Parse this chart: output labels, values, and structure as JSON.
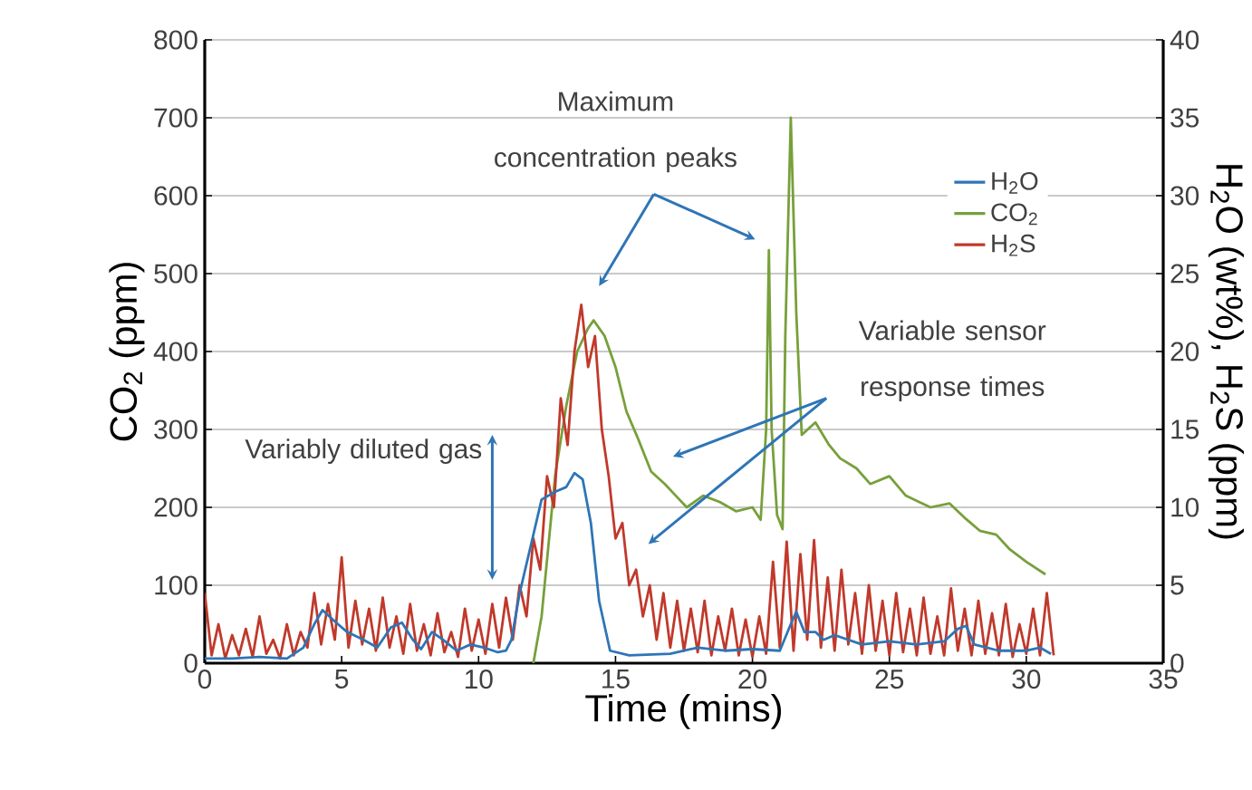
{
  "chart_data": {
    "type": "line",
    "xlabel": "Time (mins)",
    "ylabel": "CO$_{2}$ (ppm)",
    "y2label": "H$_{2}$O (wt%), H$_{2}$S (ppm)",
    "xlim": [
      0,
      35
    ],
    "xticks": [
      0,
      5,
      10,
      15,
      20,
      25,
      30,
      35
    ],
    "ylim": [
      0,
      800
    ],
    "yticks": [
      0,
      100,
      200,
      300,
      400,
      500,
      600,
      700,
      800
    ],
    "y2lim": [
      0,
      40
    ],
    "y2ticks": [
      0,
      5,
      10,
      15,
      20,
      25,
      30,
      35,
      40
    ],
    "grid": "y",
    "legend": "top right",
    "marker": "none",
    "line_style": "solid",
    "annotations": [
      "Maximum concentration peaks",
      "Variably diluted gas",
      "Variable sensor response times"
    ],
    "series": [
      {
        "name": "H$_{2}$O",
        "color": "#2e75b6",
        "axis": "y2",
        "x": [
          0,
          1,
          2,
          3,
          3.6,
          4.0,
          4.3,
          4.8,
          5.2,
          5.8,
          6.3,
          6.8,
          7.2,
          7.6,
          7.9,
          8.3,
          8.7,
          9.2,
          9.7,
          10.2,
          10.7,
          11.0,
          11.2,
          11.5,
          11.9,
          12.3,
          12.8,
          13.2,
          13.5,
          13.8,
          14.1,
          14.4,
          14.8,
          15.5,
          17,
          18,
          19,
          20,
          21,
          21.4,
          21.6,
          21.9,
          22.3,
          22.6,
          23,
          24,
          25,
          26,
          27,
          27.5,
          27.8,
          28.1,
          29,
          30,
          30.5,
          30.9
        ],
        "values": [
          0.3,
          0.3,
          0.4,
          0.3,
          1.0,
          2.5,
          3.4,
          2.6,
          2.0,
          1.5,
          1.0,
          2.3,
          2.6,
          1.5,
          0.9,
          2.0,
          1.5,
          0.8,
          1.2,
          1.0,
          0.7,
          0.8,
          1.5,
          4.5,
          7.5,
          10.5,
          11.0,
          11.3,
          12.2,
          11.8,
          9.0,
          4.0,
          0.8,
          0.5,
          0.6,
          1.0,
          0.8,
          0.9,
          0.8,
          2.5,
          3.3,
          2.0,
          2.0,
          1.5,
          1.8,
          1.2,
          1.4,
          1.2,
          1.4,
          2.2,
          2.4,
          1.2,
          0.8,
          0.8,
          1.0,
          0.6
        ]
      },
      {
        "name": "CO$_{2}$",
        "color": "#77a03a",
        "x": [
          12.0,
          12.3,
          12.8,
          13.2,
          13.6,
          14.0,
          14.2,
          14.6,
          15.0,
          15.4,
          15.8,
          16.3,
          16.8,
          17.2,
          17.6,
          18.2,
          18.8,
          19.4,
          20.0,
          20.3,
          20.5,
          20.6,
          20.7,
          20.9,
          21.1,
          21.2,
          21.4,
          21.6,
          21.8,
          22.3,
          22.8,
          23.2,
          23.8,
          24.3,
          25.0,
          25.6,
          26.5,
          27.2,
          27.8,
          28.3,
          28.9,
          29.4,
          30.0,
          30.7
        ],
        "values": [
          0,
          60,
          242,
          330,
          400,
          430,
          440,
          420,
          380,
          323,
          290,
          246,
          230,
          215,
          200,
          215,
          207,
          195,
          200,
          184,
          300,
          530,
          300,
          190,
          172,
          420,
          700,
          450,
          293,
          309,
          280,
          263,
          250,
          230,
          240,
          215,
          200,
          205,
          185,
          170,
          165,
          146,
          130,
          114
        ]
      },
      {
        "name": "H$_{2}$S",
        "color": "#c0392b",
        "axis": "y2",
        "x": [
          0,
          0.25,
          0.5,
          0.75,
          1,
          1.25,
          1.5,
          1.75,
          2,
          2.25,
          2.5,
          2.75,
          3,
          3.25,
          3.5,
          3.75,
          4,
          4.25,
          4.5,
          4.75,
          5,
          5.25,
          5.5,
          5.75,
          6,
          6.25,
          6.5,
          6.75,
          7,
          7.25,
          7.5,
          7.75,
          8,
          8.25,
          8.5,
          8.75,
          9,
          9.25,
          9.5,
          9.75,
          10,
          10.25,
          10.5,
          10.75,
          11,
          11.25,
          11.5,
          11.75,
          12,
          12.25,
          12.5,
          12.75,
          13,
          13.25,
          13.5,
          13.75,
          14,
          14.25,
          14.5,
          14.75,
          15,
          15.25,
          15.5,
          15.75,
          16,
          16.25,
          16.5,
          16.75,
          17,
          17.25,
          17.5,
          17.75,
          18,
          18.25,
          18.5,
          18.75,
          19,
          19.25,
          19.5,
          19.75,
          20,
          20.25,
          20.5,
          20.75,
          21,
          21.25,
          21.5,
          21.75,
          22,
          22.25,
          22.5,
          22.75,
          23,
          23.25,
          23.5,
          23.75,
          24,
          24.25,
          24.5,
          24.75,
          25,
          25.25,
          25.5,
          25.75,
          26,
          26.25,
          26.5,
          26.75,
          27,
          27.25,
          27.5,
          27.75,
          28,
          28.25,
          28.5,
          28.75,
          29,
          29.25,
          29.5,
          29.75,
          30,
          30.25,
          30.5,
          30.75,
          31
        ],
        "values": [
          4.5,
          0.5,
          2.5,
          0.3,
          1.8,
          0.5,
          2.2,
          0.4,
          3.0,
          0.6,
          1.5,
          0.3,
          2.5,
          0.5,
          2.0,
          1.0,
          4.5,
          1.2,
          3.8,
          1.5,
          6.8,
          1.0,
          4.0,
          1.2,
          3.5,
          0.8,
          4.2,
          1.0,
          3.0,
          0.6,
          3.8,
          0.8,
          2.5,
          0.5,
          3.2,
          0.7,
          2.0,
          0.4,
          3.5,
          0.8,
          2.8,
          0.6,
          3.8,
          1.0,
          4.2,
          1.5,
          5.0,
          3.0,
          8.0,
          6.0,
          12.0,
          10.0,
          17.0,
          14.0,
          20.0,
          23.0,
          19.0,
          21.0,
          15.0,
          12.0,
          8.0,
          9.0,
          5.0,
          6.0,
          3.0,
          5.0,
          1.5,
          4.5,
          1.0,
          4.0,
          0.8,
          3.5,
          0.7,
          4.0,
          0.5,
          3.0,
          0.8,
          3.5,
          0.5,
          2.8,
          0.4,
          3.0,
          0.6,
          6.5,
          1.0,
          7.8,
          0.8,
          7.0,
          1.5,
          7.9,
          1.0,
          5.5,
          0.8,
          6.0,
          1.2,
          4.5,
          0.6,
          5.0,
          0.8,
          4.0,
          0.5,
          4.5,
          0.7,
          3.5,
          0.5,
          4.2,
          0.6,
          3.0,
          0.5,
          4.8,
          0.8,
          3.5,
          0.5,
          4.0,
          0.6,
          3.2,
          0.5,
          3.8,
          0.4,
          2.5,
          0.6,
          3.5,
          0.5,
          4.5,
          0.5
        ]
      }
    ]
  }
}
